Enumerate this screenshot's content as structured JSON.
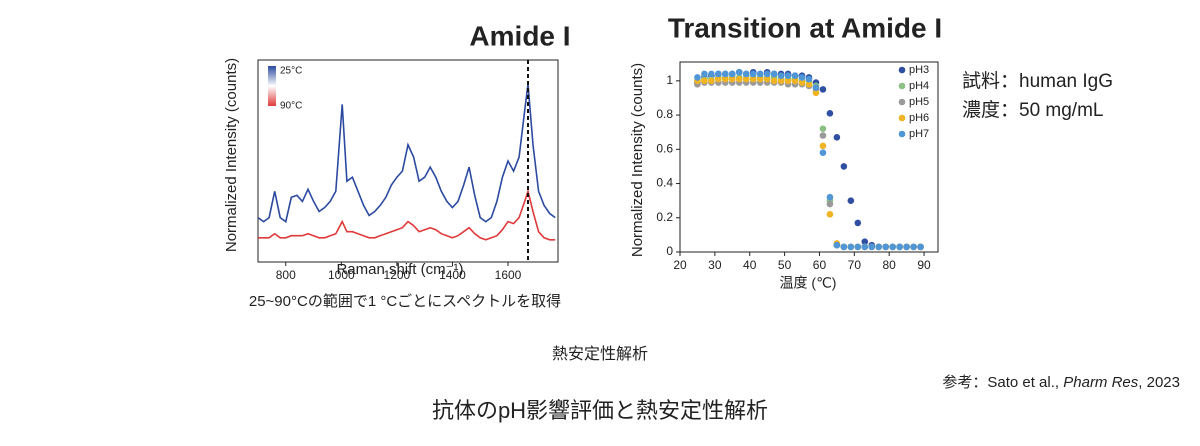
{
  "chart_data": [
    {
      "type": "line",
      "title": "Amide I",
      "xlabel": "Raman shift (cm⁻¹)",
      "ylabel": "Normalized Intensity (counts)",
      "x": [
        700,
        720,
        740,
        760,
        780,
        800,
        820,
        840,
        860,
        880,
        900,
        920,
        940,
        960,
        980,
        1003,
        1020,
        1040,
        1060,
        1080,
        1100,
        1120,
        1140,
        1160,
        1180,
        1200,
        1220,
        1240,
        1260,
        1280,
        1300,
        1320,
        1340,
        1360,
        1380,
        1400,
        1420,
        1440,
        1460,
        1480,
        1500,
        1520,
        1540,
        1560,
        1580,
        1600,
        1620,
        1640,
        1660,
        1672,
        1690,
        1710,
        1730,
        1750,
        1770
      ],
      "series": [
        {
          "name": "25°C",
          "color": "#2b4aa0",
          "values": [
            0.22,
            0.2,
            0.22,
            0.35,
            0.22,
            0.2,
            0.32,
            0.33,
            0.3,
            0.36,
            0.3,
            0.25,
            0.27,
            0.3,
            0.35,
            0.78,
            0.4,
            0.42,
            0.35,
            0.28,
            0.23,
            0.25,
            0.28,
            0.32,
            0.38,
            0.42,
            0.45,
            0.58,
            0.52,
            0.4,
            0.42,
            0.47,
            0.42,
            0.35,
            0.3,
            0.27,
            0.3,
            0.38,
            0.47,
            0.33,
            0.22,
            0.2,
            0.22,
            0.3,
            0.42,
            0.5,
            0.45,
            0.52,
            0.75,
            0.88,
            0.58,
            0.35,
            0.28,
            0.24,
            0.22
          ]
        },
        {
          "name": "90°C",
          "color": "#e03a3a",
          "values": [
            0.12,
            0.12,
            0.12,
            0.14,
            0.12,
            0.12,
            0.13,
            0.13,
            0.13,
            0.14,
            0.13,
            0.12,
            0.12,
            0.13,
            0.14,
            0.2,
            0.15,
            0.15,
            0.14,
            0.13,
            0.12,
            0.12,
            0.13,
            0.14,
            0.15,
            0.16,
            0.17,
            0.2,
            0.18,
            0.15,
            0.16,
            0.17,
            0.16,
            0.14,
            0.13,
            0.12,
            0.13,
            0.15,
            0.17,
            0.14,
            0.12,
            0.11,
            0.12,
            0.13,
            0.16,
            0.2,
            0.19,
            0.22,
            0.3,
            0.35,
            0.25,
            0.15,
            0.12,
            0.11,
            0.11
          ]
        }
      ],
      "xlim": [
        700,
        1780
      ],
      "ylim": [
        0,
        1
      ],
      "xticks": [
        800,
        1000,
        1200,
        1400,
        1600
      ],
      "reference_line": 1672
    },
    {
      "type": "scatter",
      "title": "Transition at Amide I",
      "xlabel": "温度 (℃)",
      "ylabel": "Normalized Intensity (counts)",
      "x": [
        25,
        27,
        29,
        31,
        33,
        35,
        37,
        39,
        41,
        43,
        45,
        47,
        49,
        51,
        53,
        55,
        57,
        59,
        61,
        63,
        65,
        67,
        69,
        71,
        73,
        75,
        77,
        79,
        81,
        83,
        85,
        87,
        89
      ],
      "series": [
        {
          "name": "pH3",
          "color": "#2f4fa3",
          "values": [
            0.99,
            1.02,
            1.03,
            1.04,
            1.04,
            1.04,
            1.05,
            1.04,
            1.05,
            1.04,
            1.05,
            1.04,
            1.04,
            1.04,
            1.03,
            1.03,
            1.02,
            0.99,
            0.95,
            0.81,
            0.67,
            0.5,
            0.3,
            0.17,
            0.06,
            0.04,
            0.03,
            0.03,
            0.03,
            0.03,
            0.03,
            0.03,
            0.03
          ]
        },
        {
          "name": "pH4",
          "color": "#8cc084",
          "values": [
            1.0,
            1.01,
            1.01,
            1.02,
            1.02,
            1.02,
            1.02,
            1.03,
            1.02,
            1.02,
            1.02,
            1.02,
            1.01,
            1.01,
            1.01,
            1.0,
            1.0,
            0.97,
            0.72,
            0.3,
            0.04,
            0.03,
            0.03,
            0.03,
            0.03,
            0.03,
            0.03,
            0.03,
            0.03,
            0.03,
            0.03,
            0.03,
            0.03
          ]
        },
        {
          "name": "pH5",
          "color": "#9a9a9a",
          "values": [
            0.98,
            0.99,
            0.99,
            0.99,
            0.99,
            0.99,
            0.99,
            0.99,
            0.99,
            0.99,
            0.99,
            0.99,
            0.99,
            0.98,
            0.98,
            0.98,
            0.97,
            0.95,
            0.68,
            0.28,
            0.04,
            0.03,
            0.03,
            0.03,
            0.03,
            0.03,
            0.03,
            0.03,
            0.03,
            0.03,
            0.03,
            0.03,
            0.03
          ]
        },
        {
          "name": "pH6",
          "color": "#f0b323",
          "values": [
            1.0,
            1.0,
            1.0,
            1.01,
            1.01,
            1.01,
            1.01,
            1.01,
            1.01,
            1.01,
            1.01,
            1.0,
            1.0,
            1.0,
            1.0,
            0.99,
            0.98,
            0.93,
            0.62,
            0.22,
            0.05,
            0.03,
            0.03,
            0.03,
            0.03,
            0.03,
            0.03,
            0.03,
            0.03,
            0.03,
            0.03,
            0.03,
            0.03
          ]
        },
        {
          "name": "pH7",
          "color": "#4f96d6",
          "values": [
            1.02,
            1.04,
            1.04,
            1.04,
            1.04,
            1.04,
            1.05,
            1.04,
            1.04,
            1.04,
            1.04,
            1.04,
            1.03,
            1.03,
            1.03,
            1.02,
            1.01,
            0.96,
            0.58,
            0.32,
            0.04,
            0.03,
            0.03,
            0.03,
            0.03,
            0.03,
            0.03,
            0.03,
            0.03,
            0.03,
            0.03,
            0.03,
            0.03
          ]
        }
      ],
      "xlim": [
        20,
        94
      ],
      "ylim": [
        0,
        1.11
      ],
      "xticks": [
        20,
        30,
        40,
        50,
        60,
        70,
        80,
        90
      ],
      "yticks": [
        0,
        0.2,
        0.4,
        0.6,
        0.8,
        1
      ],
      "legend": "upper right"
    }
  ],
  "sample": {
    "line1": "試料：human IgG",
    "line2": "濃度：50 mg/mL"
  },
  "caption": "25~90°Cの範囲で1 °Cごとにスペクトルを取得",
  "section": "熱安定性解析",
  "reference": {
    "prefix": "参考：Sato et al., ",
    "journal": "Pharm Res",
    "suffix": ", 2023"
  },
  "footer_title": "抗体のpH影響評価と熱安定性解析"
}
